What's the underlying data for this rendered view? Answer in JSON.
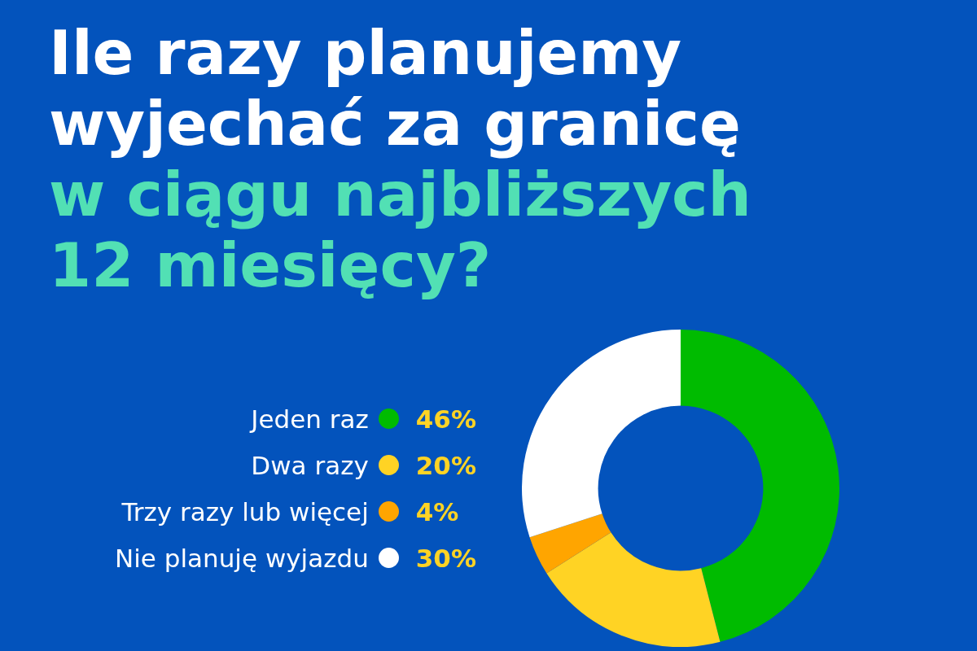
{
  "chart_data": {
    "type": "donut",
    "title": "Ile razy planujemy wyjechać za granicę",
    "subtitle": "w ciągu najbliższych 12 miesięcy?",
    "categories": [
      "Jeden raz",
      "Dwa razy",
      "Trzy razy lub więcej",
      "Nie planuję wyjazdu"
    ],
    "values": [
      46,
      20,
      4,
      30
    ],
    "colors": [
      "#00bb00",
      "#ffd324",
      "#ffa500",
      "#ffffff"
    ],
    "value_labels": [
      "46%",
      "20%",
      "4%",
      "30%"
    ],
    "legend": "left"
  }
}
